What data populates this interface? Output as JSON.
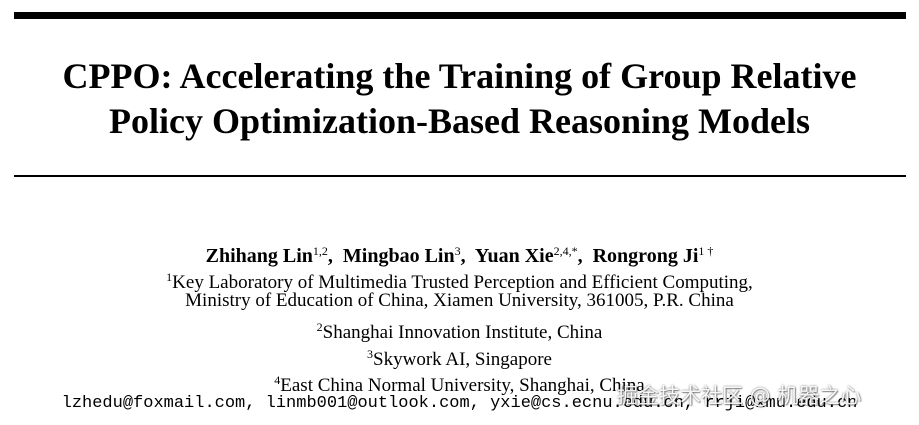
{
  "title": {
    "line1": "CPPO: Accelerating the Training of Group Relative",
    "line2": "Policy Optimization-Based Reasoning Models"
  },
  "authors": [
    {
      "name": "Zhihang Lin",
      "sup": "1,2",
      "sep": ",  "
    },
    {
      "name": "Mingbao Lin",
      "sup": "3",
      "sep": ",  "
    },
    {
      "name": "Yuan Xie",
      "sup": "2,4,*",
      "sep": ",  "
    },
    {
      "name": "Rongrong Ji",
      "sup": "1 †",
      "sep": ""
    }
  ],
  "affiliations": [
    {
      "sup": "1",
      "text": "Key Laboratory of Multimedia Trusted Perception and Efficient Computing,"
    },
    {
      "sup": "",
      "text": "Ministry of Education of China, Xiamen University, 361005, P.R. China"
    },
    {
      "sup": "2",
      "text": "Shanghai Innovation Institute, China"
    },
    {
      "sup": "3",
      "text": "Skywork AI, Singapore"
    },
    {
      "sup": "4",
      "text": "East China Normal University, Shanghai, China"
    }
  ],
  "emails": "lzhedu@foxmail.com, linmb001@outlook.com, yxie@cs.ecnu.edu.cn, rrji@xmu.edu.cn",
  "watermark": "掘金技术社区 @ 机器之心"
}
